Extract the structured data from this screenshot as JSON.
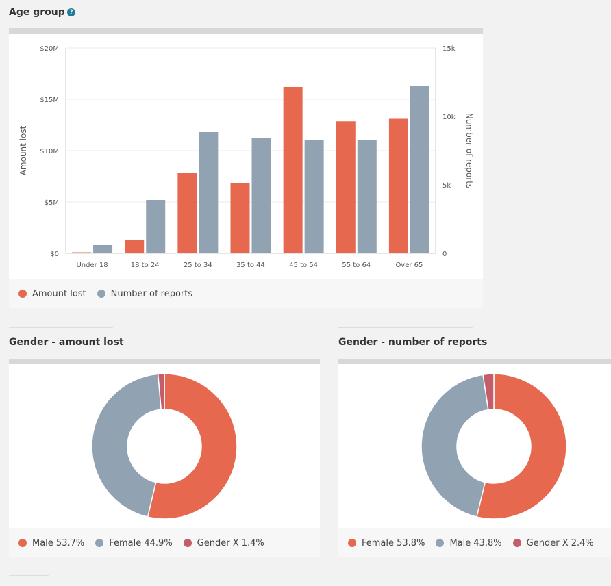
{
  "age_section": {
    "title": "Age group",
    "help_glyph": "?"
  },
  "gender_amount_section": {
    "title": "Gender - amount lost"
  },
  "gender_reports_section": {
    "title": "Gender - number of reports"
  },
  "colors": {
    "amount": "#e5684f",
    "reports": "#91a2b3",
    "gender_x": "#c45c6a"
  },
  "chart_data": [
    {
      "type": "bar",
      "title": "Age group",
      "categories": [
        "Under 18",
        "18 to 24",
        "25 to 34",
        "35 to 44",
        "45 to 54",
        "55 to 64",
        "Over 65"
      ],
      "series": [
        {
          "name": "Amount lost",
          "axis": "left",
          "values": [
            100000,
            1300000,
            7850000,
            6800000,
            16200000,
            12850000,
            13100000
          ]
        },
        {
          "name": "Number of reports",
          "axis": "right",
          "values": [
            600,
            3900,
            8850,
            8450,
            8300,
            8300,
            12200
          ]
        }
      ],
      "ylabel": "Amount lost",
      "ylabel_right": "Number of reports",
      "ylim": [
        0,
        20000000
      ],
      "ylim_right": [
        0,
        15000
      ],
      "yticks": [
        "$0",
        "$5M",
        "$10M",
        "$15M",
        "$20M"
      ],
      "yticks_right": [
        "0",
        "5k",
        "10k",
        "15k"
      ],
      "legend": [
        "Amount lost",
        "Number of reports"
      ]
    },
    {
      "type": "pie",
      "title": "Gender - amount lost",
      "labels": [
        "Male",
        "Female",
        "Gender X"
      ],
      "values": [
        53.7,
        44.9,
        1.4
      ],
      "legend": [
        "Male 53.7%",
        "Female 44.9%",
        "Gender X 1.4%"
      ]
    },
    {
      "type": "pie",
      "title": "Gender - number of reports",
      "labels": [
        "Female",
        "Male",
        "Gender X"
      ],
      "values": [
        53.8,
        43.8,
        2.4
      ],
      "legend": [
        "Female 53.8%",
        "Male 43.8%",
        "Gender X 2.4%"
      ]
    }
  ]
}
